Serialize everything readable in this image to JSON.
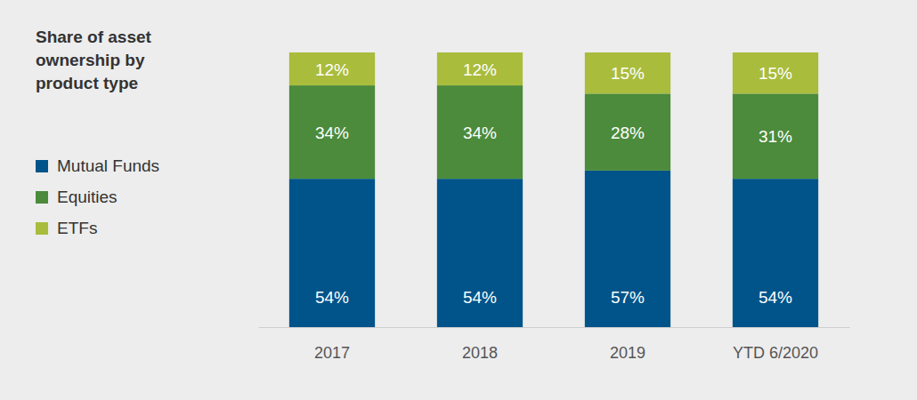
{
  "chart_data": {
    "type": "bar",
    "stacked": true,
    "data_labels": true,
    "tick_labels": "x",
    "title": "Share of asset ownership by product type",
    "categories": [
      "2017",
      "2018",
      "2019",
      "YTD 6/2020"
    ],
    "ylim": [
      0,
      100
    ],
    "series": [
      {
        "name": "Mutual Funds",
        "color": "#00548a",
        "values": [
          54,
          54,
          57,
          54
        ],
        "value_labels": [
          "54%",
          "54%",
          "57%",
          "54%"
        ]
      },
      {
        "name": "Equities",
        "color": "#4b8b3b",
        "values": [
          34,
          34,
          28,
          31
        ],
        "value_labels": [
          "34%",
          "34%",
          "28%",
          "31%"
        ]
      },
      {
        "name": "ETFs",
        "color": "#a9bc3c",
        "values": [
          12,
          12,
          15,
          15
        ],
        "value_labels": [
          "12%",
          "12%",
          "15%",
          "15%"
        ]
      }
    ]
  }
}
